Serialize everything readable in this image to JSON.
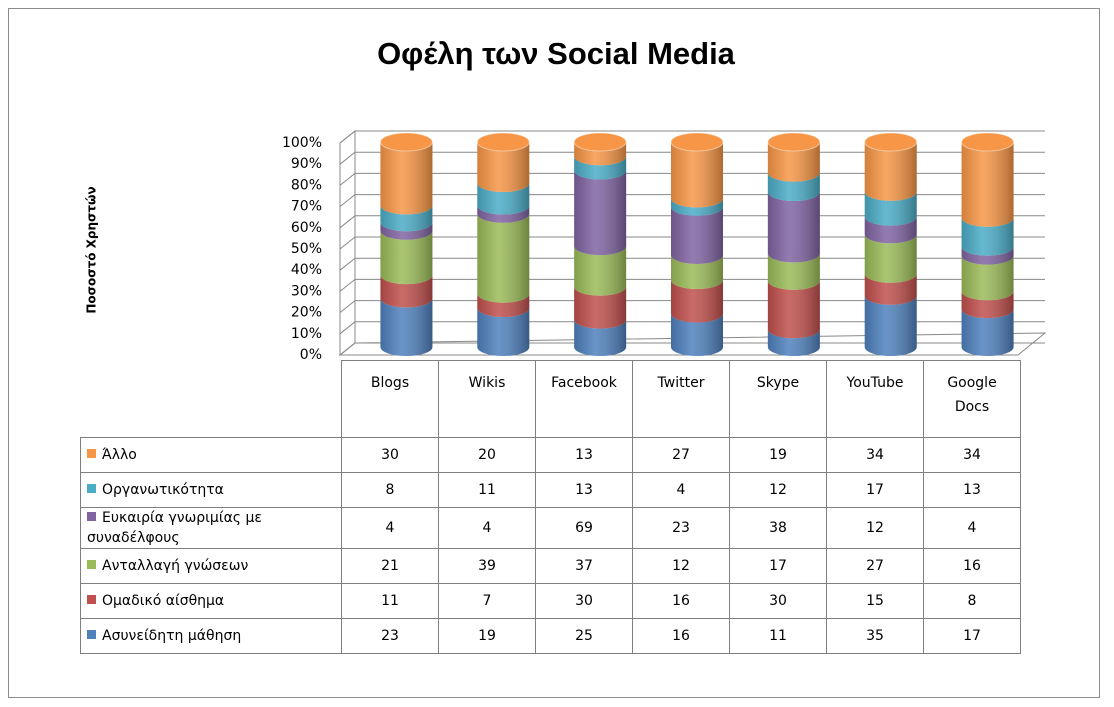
{
  "chart_data": {
    "type": "stacked-cylinder-100",
    "title": "Οφέλη των Social Media",
    "y_axis_label": "Ποσοστό Χρηστών",
    "categories": [
      "Blogs",
      "Wikis",
      "Facebook",
      "Twitter",
      "Skype",
      "YouTube",
      "Google Docs"
    ],
    "series": [
      {
        "name": "Ασυνείδητη μάθηση",
        "color": "#4f81bd",
        "values": [
          23,
          19,
          25,
          16,
          11,
          35,
          17
        ]
      },
      {
        "name": "Ομαδικό αίσθημα",
        "color": "#c0504d",
        "values": [
          11,
          7,
          30,
          16,
          30,
          15,
          8
        ]
      },
      {
        "name": "Ανταλλαγή γνώσεων",
        "color": "#9bbb59",
        "values": [
          21,
          39,
          37,
          12,
          17,
          27,
          16
        ]
      },
      {
        "name": "Ευκαιρία γνωριμίας με συναδέλφους",
        "color": "#8064a2",
        "values": [
          4,
          4,
          69,
          23,
          38,
          12,
          4
        ]
      },
      {
        "name": "Οργανωτικότητα",
        "color": "#4bacc6",
        "values": [
          8,
          11,
          13,
          4,
          12,
          17,
          13
        ]
      },
      {
        "name": "Άλλο",
        "color": "#f79646",
        "values": [
          30,
          20,
          13,
          27,
          19,
          34,
          34
        ]
      }
    ],
    "ylim": [
      0,
      100
    ],
    "yticks": [
      {
        "value": 0,
        "label": "0%"
      },
      {
        "value": 10,
        "label": "10%"
      },
      {
        "value": 20,
        "label": "20%"
      },
      {
        "value": 30,
        "label": "30%"
      },
      {
        "value": 40,
        "label": "40%"
      },
      {
        "value": 50,
        "label": "50%"
      },
      {
        "value": 60,
        "label": "60%"
      },
      {
        "value": 70,
        "label": "70%"
      },
      {
        "value": 80,
        "label": "80%"
      },
      {
        "value": 90,
        "label": "90%"
      },
      {
        "value": 100,
        "label": "100%"
      }
    ],
    "grid": true
  }
}
